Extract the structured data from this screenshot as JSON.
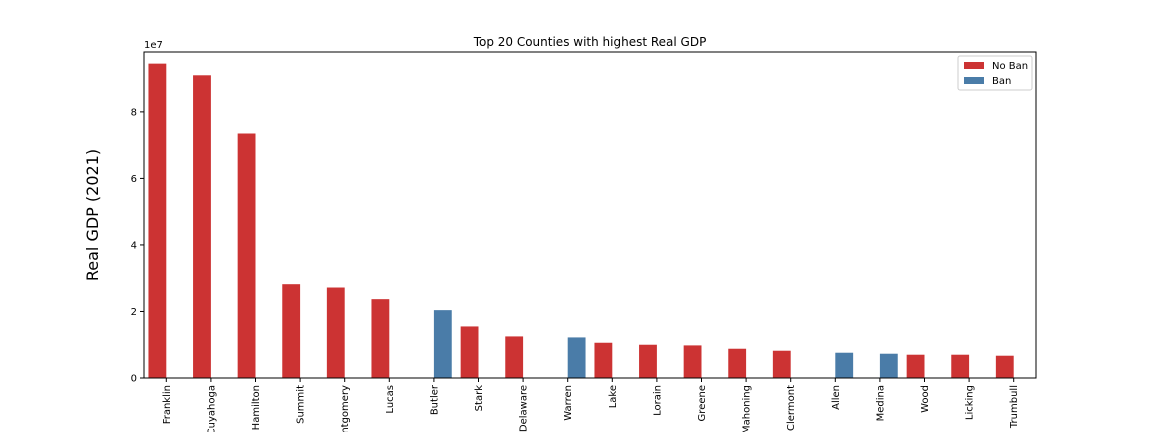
{
  "chart_data": {
    "type": "bar",
    "title": "Top 20 Counties with highest Real GDP",
    "xlabel": "",
    "ylabel": "Real GDP (2021)",
    "y_offset_text": "1e7",
    "y_scale": 10000000,
    "ylim": [
      0,
      98000000
    ],
    "y_ticks": [
      0,
      20000000,
      40000000,
      60000000,
      80000000
    ],
    "y_tick_labels": [
      "0",
      "2",
      "4",
      "6",
      "8"
    ],
    "grid": false,
    "legend_position": "top-right",
    "categories": [
      "Franklin",
      "Cuyahoga",
      "Hamilton",
      "Summit",
      "Montgomery",
      "Lucas",
      "Butler",
      "Stark",
      "Delaware",
      "Warren",
      "Lake",
      "Lorain",
      "Greene",
      "Mahoning",
      "Clermont",
      "Allen",
      "Medina",
      "Wood",
      "Licking",
      "Trumbull"
    ],
    "category_labels": [
      "Franklin",
      "Cuyahoga",
      "Hamilton",
      "Summit",
      "Montgomery",
      "Lucas",
      "Butler",
      "Stark",
      "Delaware",
      "Warren",
      "Lake",
      "Lorain",
      "Greene",
      "Mahoning",
      "Clermont",
      "Allen",
      "Medina",
      "Wood",
      "Licking",
      "Trumbull"
    ],
    "series": [
      {
        "name": "No Ban",
        "color": "#cc3333",
        "values": [
          94500000,
          91000000,
          73500000,
          28200000,
          27200000,
          23700000,
          null,
          15500000,
          12500000,
          null,
          10600000,
          10000000,
          9800000,
          8800000,
          8200000,
          null,
          null,
          7000000,
          7000000,
          6700000
        ]
      },
      {
        "name": "Ban",
        "color": "#4a7ca8",
        "values": [
          null,
          null,
          null,
          null,
          null,
          null,
          20400000,
          null,
          null,
          12200000,
          null,
          null,
          null,
          null,
          null,
          7600000,
          7300000,
          null,
          null,
          null
        ]
      }
    ]
  }
}
